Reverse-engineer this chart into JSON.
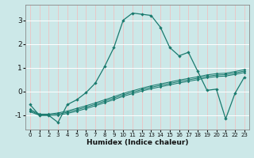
{
  "xlabel": "Humidex (Indice chaleur)",
  "bg_color": "#cce8e8",
  "grid_h_color": "#ffffff",
  "grid_v_color": "#e8c8c8",
  "line_color": "#1a7a6e",
  "xlim": [
    -0.5,
    23.5
  ],
  "ylim": [
    -1.6,
    3.65
  ],
  "xticks": [
    0,
    1,
    2,
    3,
    4,
    5,
    6,
    7,
    8,
    9,
    10,
    11,
    12,
    13,
    14,
    15,
    16,
    17,
    18,
    19,
    20,
    21,
    22,
    23
  ],
  "yticks": [
    -1,
    0,
    1,
    2,
    3
  ],
  "curve1_x": [
    0,
    1,
    2,
    3,
    4,
    5,
    6,
    7,
    8,
    9,
    10,
    11,
    12,
    13,
    14,
    15,
    16,
    17,
    18,
    19,
    20,
    21,
    22,
    23
  ],
  "curve1_y": [
    -0.55,
    -1.0,
    -1.0,
    -1.3,
    -0.55,
    -0.35,
    -0.05,
    0.35,
    1.05,
    1.85,
    3.0,
    3.3,
    3.25,
    3.2,
    2.7,
    1.85,
    1.5,
    1.65,
    0.85,
    0.05,
    0.1,
    -1.15,
    -0.08,
    0.6
  ],
  "curve2_x": [
    0,
    1,
    2,
    3,
    4,
    5,
    6,
    7,
    8,
    9,
    10,
    11,
    12,
    13,
    14,
    15,
    16,
    17,
    18,
    19,
    20,
    21,
    22,
    23
  ],
  "curve2_y": [
    -0.85,
    -1.0,
    -1.0,
    -1.0,
    -0.92,
    -0.83,
    -0.72,
    -0.6,
    -0.47,
    -0.34,
    -0.2,
    -0.09,
    0.02,
    0.12,
    0.2,
    0.28,
    0.36,
    0.43,
    0.5,
    0.58,
    0.63,
    0.65,
    0.72,
    0.8
  ],
  "curve3_x": [
    0,
    1,
    2,
    3,
    4,
    5,
    6,
    7,
    8,
    9,
    10,
    11,
    12,
    13,
    14,
    15,
    16,
    17,
    18,
    19,
    20,
    21,
    22,
    23
  ],
  "curve3_y": [
    -0.8,
    -0.98,
    -0.98,
    -0.95,
    -0.87,
    -0.77,
    -0.66,
    -0.54,
    -0.41,
    -0.28,
    -0.14,
    -0.03,
    0.08,
    0.18,
    0.26,
    0.34,
    0.42,
    0.49,
    0.56,
    0.64,
    0.69,
    0.71,
    0.78,
    0.86
  ],
  "curve4_x": [
    0,
    1,
    2,
    3,
    4,
    5,
    6,
    7,
    8,
    9,
    10,
    11,
    12,
    13,
    14,
    15,
    16,
    17,
    18,
    19,
    20,
    21,
    22,
    23
  ],
  "curve4_y": [
    -0.75,
    -0.95,
    -0.95,
    -0.9,
    -0.82,
    -0.71,
    -0.6,
    -0.48,
    -0.35,
    -0.22,
    -0.08,
    0.03,
    0.14,
    0.24,
    0.32,
    0.4,
    0.48,
    0.55,
    0.62,
    0.7,
    0.75,
    0.77,
    0.84,
    0.92
  ]
}
